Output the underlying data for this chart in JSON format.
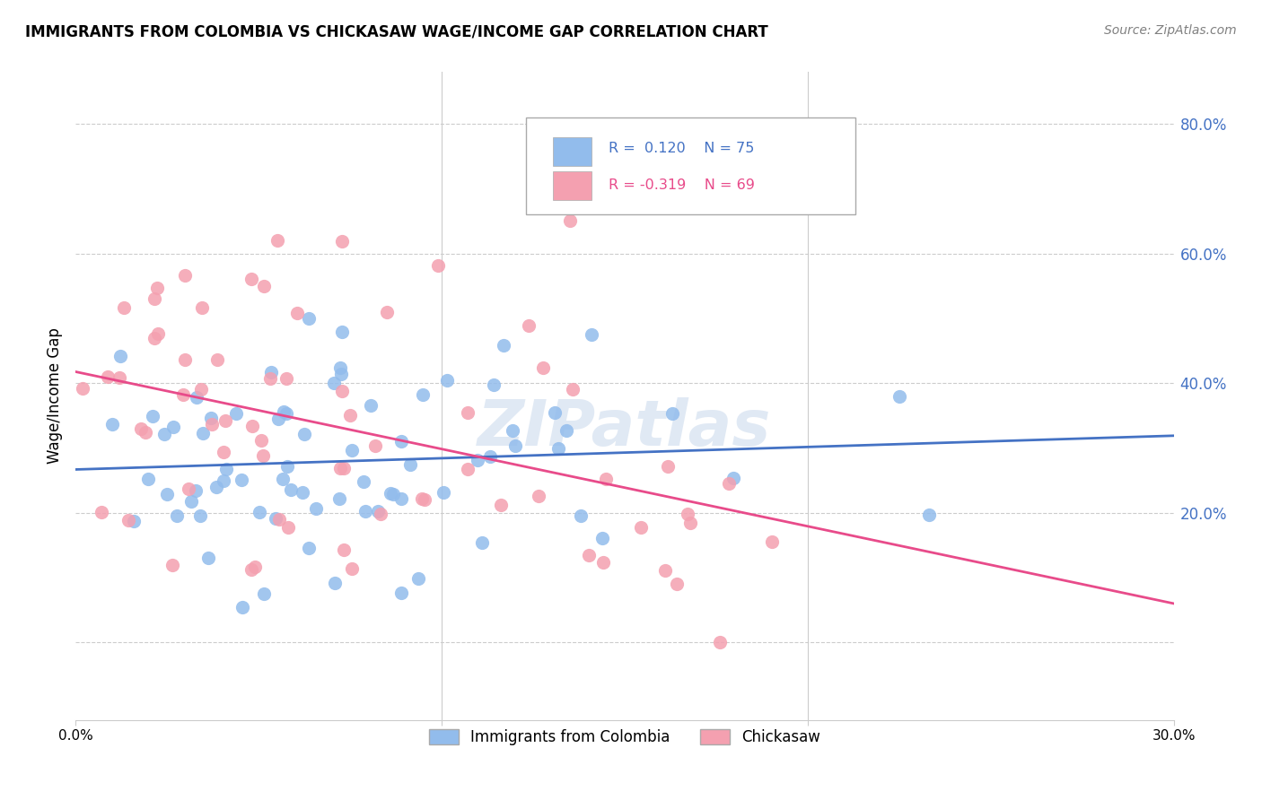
{
  "title": "IMMIGRANTS FROM COLOMBIA VS CHICKASAW WAGE/INCOME GAP CORRELATION CHART",
  "source": "Source: ZipAtlas.com",
  "ylabel": "Wage/Income Gap",
  "y_ticks": [
    0.0,
    0.2,
    0.4,
    0.6,
    0.8
  ],
  "y_tick_labels": [
    "",
    "20.0%",
    "40.0%",
    "60.0%",
    "80.0%"
  ],
  "x_lim": [
    0.0,
    0.3
  ],
  "y_lim": [
    -0.12,
    0.88
  ],
  "blue_R": 0.12,
  "blue_N": 75,
  "pink_R": -0.319,
  "pink_N": 69,
  "blue_color": "#92BCEC",
  "pink_color": "#F4A0B0",
  "blue_line_color": "#4472C4",
  "pink_line_color": "#E84B8A",
  "legend_label_blue": "Immigrants from Colombia",
  "legend_label_pink": "Chickasaw",
  "watermark": "ZIPatlas",
  "background_color": "#FFFFFF",
  "grid_color": "#CCCCCC"
}
